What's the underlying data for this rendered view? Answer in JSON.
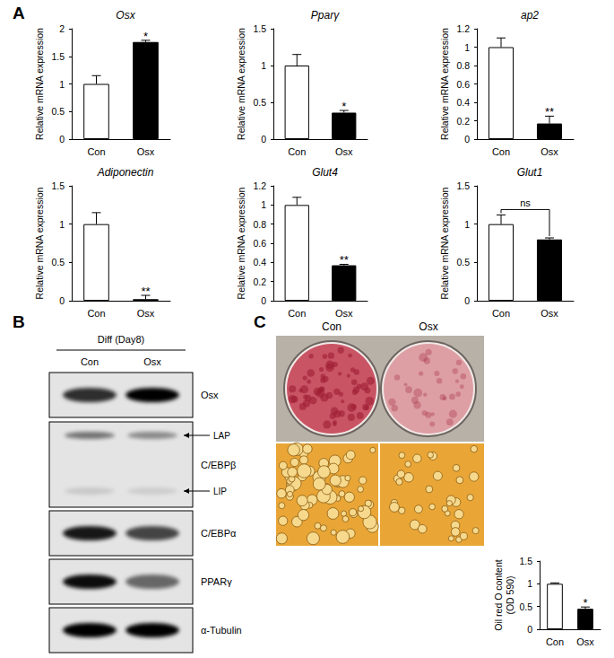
{
  "chart_data": [
    {
      "type": "bar",
      "title": "Osx",
      "ylabel": "Relative mRNA expression",
      "categories": [
        "Con",
        "Osx"
      ],
      "values": [
        1,
        1.76
      ],
      "errors": [
        0.15,
        0.03
      ],
      "colors": [
        "#ffffff",
        "#000000"
      ],
      "ylim": [
        0,
        2
      ],
      "yticks": [
        0,
        0.5,
        1,
        1.5,
        2
      ],
      "grid": false,
      "annotation": {
        "text": "*",
        "target": "Osx"
      }
    },
    {
      "type": "bar",
      "title": "Pparγ",
      "ylabel": "Relative mRNA expression",
      "categories": [
        "Con",
        "Osx"
      ],
      "values": [
        1,
        0.36
      ],
      "errors": [
        0.15,
        0.03
      ],
      "colors": [
        "#ffffff",
        "#000000"
      ],
      "ylim": [
        0,
        1.5
      ],
      "yticks": [
        0,
        0.5,
        1,
        1.5
      ],
      "grid": false,
      "annotation": {
        "text": "*",
        "target": "Osx"
      }
    },
    {
      "type": "bar",
      "title": "ap2",
      "ylabel": "Relative mRNA expression",
      "categories": [
        "Con",
        "Osx"
      ],
      "values": [
        1,
        0.17
      ],
      "errors": [
        0.1,
        0.08
      ],
      "colors": [
        "#ffffff",
        "#000000"
      ],
      "ylim": [
        0,
        1.2
      ],
      "yticks": [
        0,
        0.2,
        0.4,
        0.6,
        0.8,
        1,
        1.2
      ],
      "grid": false,
      "annotation": {
        "text": "**",
        "target": "Osx"
      }
    },
    {
      "type": "bar",
      "title": "Adiponectin",
      "ylabel": "Relative mRNA expression",
      "categories": [
        "Con",
        "Osx"
      ],
      "values": [
        1,
        0.02
      ],
      "errors": [
        0.15,
        0.05
      ],
      "colors": [
        "#ffffff",
        "#000000"
      ],
      "ylim": [
        0,
        1.5
      ],
      "yticks": [
        0,
        0.5,
        1,
        1.5
      ],
      "grid": false,
      "annotation": {
        "text": "**",
        "target": "Osx"
      }
    },
    {
      "type": "bar",
      "title": "Glut4",
      "ylabel": "Relative mRNA expression",
      "categories": [
        "Con",
        "Osx"
      ],
      "values": [
        1,
        0.37
      ],
      "errors": [
        0.08,
        0.01
      ],
      "colors": [
        "#ffffff",
        "#000000"
      ],
      "ylim": [
        0,
        1.2
      ],
      "yticks": [
        0,
        0.2,
        0.4,
        0.6,
        0.8,
        1,
        1.2
      ],
      "grid": false,
      "annotation": {
        "text": "**",
        "target": "Osx"
      }
    },
    {
      "type": "bar",
      "title": "Glut1",
      "ylabel": "Relative mRNA expression",
      "categories": [
        "Con",
        "Osx"
      ],
      "values": [
        1,
        0.8
      ],
      "errors": [
        0.12,
        0.02
      ],
      "colors": [
        "#ffffff",
        "#000000"
      ],
      "ylim": [
        0,
        1.5
      ],
      "yticks": [
        0,
        0.5,
        1,
        1.5
      ],
      "grid": false,
      "annotation": {
        "text": "ns",
        "target": [
          "Con",
          "Osx"
        ]
      }
    },
    {
      "type": "bar",
      "ylabel": "Oil red O content\n(OD 590)",
      "categories": [
        "Con",
        "Osx"
      ],
      "values": [
        1,
        0.45
      ],
      "errors": [
        0.02,
        0.04
      ],
      "colors": [
        "#ffffff",
        "#000000"
      ],
      "ylim": [
        0,
        1.5
      ],
      "yticks": [
        0,
        0.5,
        1,
        1.5
      ],
      "grid": false,
      "annotation": {
        "text": "*",
        "target": "Osx"
      }
    }
  ],
  "figure": {
    "panels": [
      "A",
      "B",
      "C"
    ],
    "blot": {
      "header": "Diff (Day8)",
      "lanes": [
        "Con",
        "Osx"
      ],
      "rows": [
        {
          "label": "Osx",
          "bands": [
            0.8,
            1.0
          ]
        },
        {
          "label": "C/EBPβ",
          "markers": [
            {
              "label": "LAP",
              "bands": [
                0.5,
                0.4
              ]
            },
            {
              "label": "LIP",
              "bands": [
                0.12,
                0.1
              ]
            }
          ]
        },
        {
          "label": "C/EBPα",
          "bands": [
            0.9,
            0.7
          ]
        },
        {
          "label": "PPARγ",
          "bands": [
            0.95,
            0.55
          ]
        },
        {
          "label": "α-Tubulin",
          "bands": [
            1.0,
            1.0
          ]
        }
      ]
    },
    "photo": {
      "labels": [
        "Con",
        "Osx"
      ],
      "stain": [
        1.0,
        0.5
      ]
    }
  }
}
